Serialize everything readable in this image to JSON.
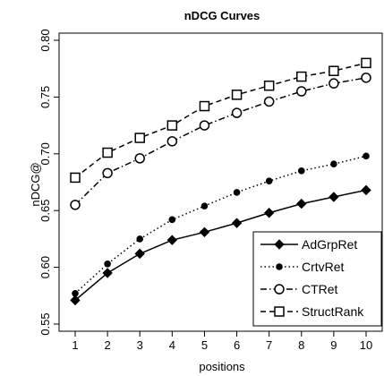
{
  "chart_data": {
    "type": "line",
    "title": "nDCG Curves",
    "xlabel": "positions",
    "ylabel": "nDCG@",
    "x": [
      1,
      2,
      3,
      4,
      5,
      6,
      7,
      8,
      9,
      10
    ],
    "xlim": [
      1,
      10
    ],
    "ylim": [
      0.55,
      0.8
    ],
    "xticks": [
      "1",
      "2",
      "3",
      "4",
      "5",
      "6",
      "7",
      "8",
      "9",
      "10"
    ],
    "yticks": [
      "0.55",
      "0.60",
      "0.65",
      "0.70",
      "0.75",
      "0.80"
    ],
    "grid": false,
    "legend_position": "bottom-right",
    "series": [
      {
        "name": "AdGrpRet",
        "line_style": "solid",
        "marker": "filled-diamond",
        "values": [
          0.571,
          0.595,
          0.612,
          0.624,
          0.631,
          0.639,
          0.648,
          0.656,
          0.662,
          0.668
        ]
      },
      {
        "name": "CrtvRet",
        "line_style": "dotted",
        "marker": "filled-circle",
        "values": [
          0.577,
          0.603,
          0.625,
          0.642,
          0.654,
          0.666,
          0.676,
          0.685,
          0.691,
          0.698
        ]
      },
      {
        "name": "CTRet",
        "line_style": "dash-dot",
        "marker": "open-circle",
        "values": [
          0.655,
          0.683,
          0.696,
          0.711,
          0.725,
          0.736,
          0.746,
          0.755,
          0.762,
          0.767
        ]
      },
      {
        "name": "StructRank",
        "line_style": "dashed",
        "marker": "open-square",
        "values": [
          0.679,
          0.701,
          0.714,
          0.725,
          0.742,
          0.752,
          0.76,
          0.768,
          0.773,
          0.78
        ]
      }
    ]
  }
}
